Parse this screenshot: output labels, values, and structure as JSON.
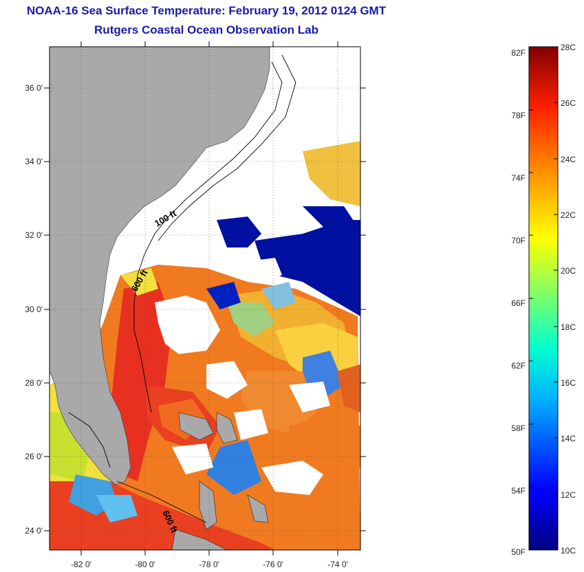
{
  "title": "NOAA-16 Sea Surface Temperature:  February 19, 2012 0124 GMT",
  "subtitle": "Rutgers Coastal Ocean Observation Lab",
  "lat_ticks": [
    "24 0'",
    "26 0'",
    "28 0'",
    "30 0'",
    "32 0'",
    "34 0'",
    "36 0'"
  ],
  "lon_ticks": [
    "-82 0'",
    "-80 0'",
    "-78 0'",
    "-76 0'",
    "-74 0'"
  ],
  "contour_labels": [
    "100 ft",
    "600 ft",
    "600 ft"
  ],
  "colorbar": {
    "fahrenheit": [
      "82F",
      "78F",
      "74F",
      "70F",
      "66F",
      "62F",
      "58F",
      "54F",
      "50F"
    ],
    "celsius": [
      "28C",
      "26C",
      "24C",
      "22C",
      "20C",
      "18C",
      "16C",
      "14C",
      "12C",
      "10C"
    ]
  },
  "colors": {
    "land": "#a9a9a9",
    "title": "#1a1aa8"
  }
}
